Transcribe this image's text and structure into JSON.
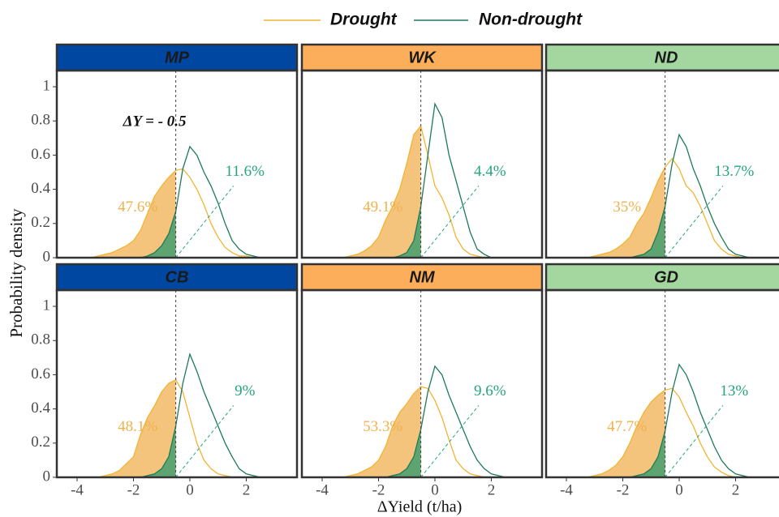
{
  "chart_data": {
    "type": "density",
    "xlabel": "ΔYield (t/ha)",
    "ylabel": "Probability density",
    "xlim": [
      -4.72,
      3.8
    ],
    "ylim": [
      0,
      1.095
    ],
    "xticks": [
      -4,
      -2,
      0,
      2
    ],
    "yticks": [
      0,
      0.2,
      0.4,
      0.6,
      0.8,
      1
    ],
    "threshold": -0.5,
    "threshold_label": "ΔY = - 0.5",
    "legend": [
      {
        "name": "Drought",
        "color": "#f2b431",
        "fill": "#f5c47c",
        "label_color": "#f0b24e"
      },
      {
        "name": "Non-drought",
        "color": "#1e7a58",
        "fill": "#5da470",
        "label_color": "#26a47e"
      }
    ],
    "x": [
      -3.5,
      -3.25,
      -3,
      -2.75,
      -2.5,
      -2.25,
      -2,
      -1.75,
      -1.5,
      -1.25,
      -1,
      -0.75,
      -0.5,
      -0.25,
      0,
      0.25,
      0.5,
      0.75,
      1,
      1.25,
      1.5,
      1.75,
      2,
      2.25,
      2.5
    ],
    "panels": [
      {
        "title": "MP",
        "strip_color": "#0047a1",
        "labels": [
          "47.6%",
          "11.6%"
        ],
        "values": [
          [
            0,
            0.01,
            0.02,
            0.03,
            0.05,
            0.07,
            0.1,
            0.16,
            0.26,
            0.36,
            0.42,
            0.47,
            0.51,
            0.52,
            0.47,
            0.4,
            0.31,
            0.2,
            0.12,
            0.06,
            0.03,
            0.01,
            0.01,
            0,
            0
          ],
          [
            0,
            0,
            0,
            0,
            0,
            0,
            0,
            0,
            0.01,
            0.03,
            0.07,
            0.14,
            0.27,
            0.52,
            0.65,
            0.6,
            0.5,
            0.42,
            0.32,
            0.2,
            0.1,
            0.05,
            0.02,
            0.01,
            0
          ]
        ]
      },
      {
        "title": "WK",
        "strip_color": "#fdae5b",
        "labels": [
          "49.1%",
          "4.4%"
        ],
        "values": [
          [
            0,
            0,
            0.01,
            0.02,
            0.04,
            0.07,
            0.12,
            0.22,
            0.3,
            0.4,
            0.55,
            0.72,
            0.77,
            0.6,
            0.42,
            0.35,
            0.25,
            0.12,
            0.05,
            0.02,
            0.01,
            0,
            0,
            0,
            0
          ],
          [
            0,
            0,
            0,
            0,
            0,
            0,
            0,
            0,
            0,
            0.01,
            0.03,
            0.1,
            0.3,
            0.6,
            0.9,
            0.82,
            0.6,
            0.45,
            0.3,
            0.15,
            0.05,
            0.02,
            0,
            0,
            0
          ]
        ]
      },
      {
        "title": "ND",
        "strip_color": "#a4d6a0",
        "labels": [
          "35%",
          "13.7%"
        ],
        "values": [
          [
            0,
            0,
            0.01,
            0.02,
            0.03,
            0.05,
            0.08,
            0.12,
            0.2,
            0.26,
            0.35,
            0.45,
            0.53,
            0.58,
            0.52,
            0.42,
            0.38,
            0.3,
            0.2,
            0.1,
            0.05,
            0.02,
            0.01,
            0,
            0
          ],
          [
            0,
            0,
            0,
            0,
            0,
            0,
            0,
            0,
            0.01,
            0.02,
            0.05,
            0.15,
            0.3,
            0.55,
            0.72,
            0.65,
            0.52,
            0.42,
            0.3,
            0.2,
            0.12,
            0.05,
            0.02,
            0.01,
            0
          ]
        ]
      },
      {
        "title": "CB",
        "strip_color": "#0047a1",
        "labels": [
          "48.1%",
          "9%"
        ],
        "values": [
          [
            0,
            0,
            0.01,
            0.02,
            0.04,
            0.08,
            0.12,
            0.25,
            0.35,
            0.42,
            0.5,
            0.55,
            0.57,
            0.5,
            0.35,
            0.2,
            0.1,
            0.05,
            0.02,
            0.01,
            0,
            0,
            0,
            0,
            0
          ],
          [
            0,
            0,
            0,
            0,
            0,
            0,
            0,
            0,
            0.01,
            0.02,
            0.05,
            0.12,
            0.3,
            0.55,
            0.72,
            0.62,
            0.5,
            0.4,
            0.3,
            0.2,
            0.12,
            0.05,
            0.02,
            0.01,
            0
          ]
        ]
      },
      {
        "title": "NM",
        "strip_color": "#fdae5b",
        "labels": [
          "53.3%",
          "9.6%"
        ],
        "values": [
          [
            0,
            0,
            0.01,
            0.02,
            0.04,
            0.06,
            0.1,
            0.18,
            0.3,
            0.38,
            0.43,
            0.49,
            0.53,
            0.52,
            0.45,
            0.35,
            0.22,
            0.1,
            0.05,
            0.02,
            0.01,
            0,
            0,
            0,
            0
          ],
          [
            0,
            0,
            0,
            0,
            0,
            0,
            0,
            0,
            0.01,
            0.02,
            0.05,
            0.12,
            0.28,
            0.5,
            0.65,
            0.6,
            0.48,
            0.38,
            0.28,
            0.18,
            0.1,
            0.05,
            0.02,
            0.01,
            0
          ]
        ]
      },
      {
        "title": "GD",
        "strip_color": "#a4d6a0",
        "labels": [
          "47.7%",
          "13%"
        ],
        "values": [
          [
            0,
            0,
            0.01,
            0.02,
            0.04,
            0.07,
            0.12,
            0.2,
            0.3,
            0.38,
            0.44,
            0.48,
            0.51,
            0.52,
            0.47,
            0.38,
            0.3,
            0.2,
            0.12,
            0.06,
            0.03,
            0.01,
            0,
            0,
            0
          ],
          [
            0,
            0,
            0,
            0,
            0,
            0,
            0,
            0,
            0.01,
            0.02,
            0.05,
            0.12,
            0.27,
            0.5,
            0.66,
            0.6,
            0.5,
            0.38,
            0.28,
            0.18,
            0.1,
            0.05,
            0.02,
            0.01,
            0
          ]
        ]
      }
    ]
  }
}
